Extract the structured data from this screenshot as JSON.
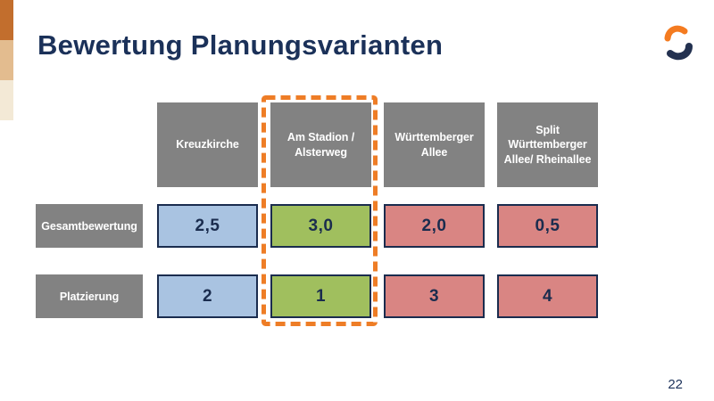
{
  "header": {
    "title": "Bewertung Planungsvarianten",
    "logo": "s-curve-logo"
  },
  "footer": {
    "page_number": "22"
  },
  "comparison_table": {
    "columns": [
      {
        "label": "Kreuzkirche",
        "highlighted": false
      },
      {
        "label": "Am Stadion /\nAlsterweg",
        "highlighted": true
      },
      {
        "label": "Württemberger\nAllee",
        "highlighted": false
      },
      {
        "label": "Split\nWürttemberger\nAllee/ Rheinallee",
        "highlighted": false
      }
    ],
    "rows": [
      {
        "label": "Gesamtbewertung",
        "cells": [
          {
            "value": "2,5",
            "tone": "blue"
          },
          {
            "value": "3,0",
            "tone": "green"
          },
          {
            "value": "2,0",
            "tone": "red"
          },
          {
            "value": "0,5",
            "tone": "red"
          }
        ]
      },
      {
        "label": "Platzierung",
        "cells": [
          {
            "value": "2",
            "tone": "blue"
          },
          {
            "value": "1",
            "tone": "green"
          },
          {
            "value": "3",
            "tone": "red"
          },
          {
            "value": "4",
            "tone": "red"
          }
        ]
      }
    ],
    "highlight": {
      "column_index": 1,
      "style": "orange-dashed-outline"
    }
  },
  "colors": {
    "title_navy": "#1b3159",
    "header_gray": "#828282",
    "cell_blue": "#a9c3e1",
    "cell_green": "#a0bf5e",
    "cell_red": "#d98583",
    "cell_border_navy": "#1a2c4e",
    "accent_orange": "#ee7d26",
    "logo_orange": "#f47b20",
    "logo_navy": "#233150",
    "sidebar_strip": [
      "#c26e2d",
      "#e3bc8f",
      "#f3e9d6"
    ]
  }
}
